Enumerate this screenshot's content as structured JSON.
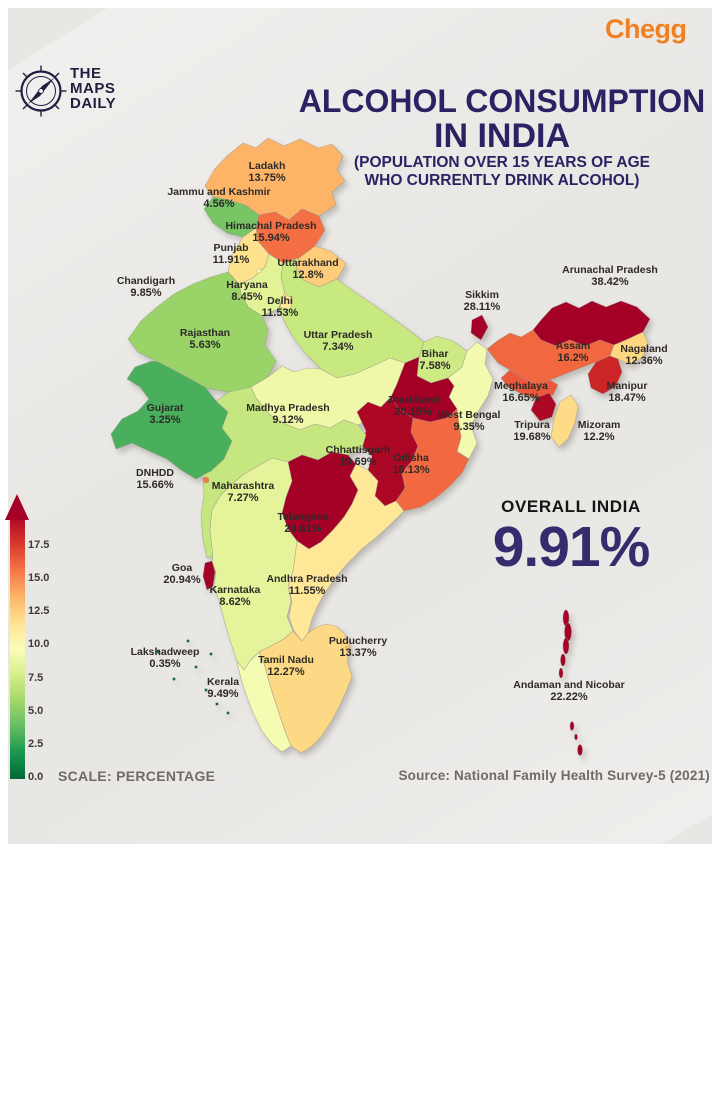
{
  "branding": {
    "chegg_logo": "Chegg",
    "chegg_color": "#f38020",
    "maps_daily_lines": [
      "THE",
      "MAPS",
      "DAILY"
    ],
    "logo_color": "#221e40"
  },
  "header": {
    "title_line1": "ALCOHOL CONSUMPTION",
    "title_line2": "IN INDIA",
    "subtitle_line1": "(POPULATION OVER 15 YEARS OF AGE",
    "subtitle_line2": "WHO CURRENTLY DRINK ALCOHOL)",
    "title_color": "#2a2263"
  },
  "overall": {
    "label": "OVERALL INDIA",
    "value": "9.91%",
    "value_color": "#372b6e"
  },
  "legend": {
    "scale_label": "SCALE: PERCENTAGE",
    "ticks": [
      "17.5",
      "15.0",
      "12.5",
      "10.0",
      "7.5",
      "5.0",
      "2.5",
      "0.0"
    ]
  },
  "footer": {
    "source": "Source: National Family Health Survey-5 (2021)"
  },
  "chart_data": {
    "type": "choropleth",
    "region": "India",
    "title": "ALCOHOL CONSUMPTION IN INDIA",
    "subtitle": "(POPULATION OVER 15 YEARS OF AGE WHO CURRENTLY DRINK ALCOHOL)",
    "metric": "percent of population over 15 years of age who currently drink alcohol",
    "unit": "%",
    "overall_india_percent": 9.91,
    "source": "National Family Health Survey-5 (2021)",
    "color_scale": {
      "type": "gradient",
      "orientation": "vertical",
      "ticks": [
        0.0,
        2.5,
        5.0,
        7.5,
        10.0,
        12.5,
        15.0,
        17.5
      ],
      "domain": [
        0,
        20
      ],
      "low_color": "#006837",
      "mid_color": "#ffffbf",
      "high_color": "#a50026"
    },
    "states": [
      {
        "name": "Ladakh",
        "value": 13.75
      },
      {
        "name": "Jammu and Kashmir",
        "value": 4.56
      },
      {
        "name": "Himachal Pradesh",
        "value": 15.94
      },
      {
        "name": "Punjab",
        "value": 11.91
      },
      {
        "name": "Uttarakhand",
        "value": 12.8
      },
      {
        "name": "Haryana",
        "value": 8.45
      },
      {
        "name": "Uttar Pradesh",
        "value": 7.34
      },
      {
        "name": "Delhi",
        "value": 11.53
      },
      {
        "name": "Chandigarh",
        "value": 9.85
      },
      {
        "name": "Rajasthan",
        "value": 5.63
      },
      {
        "name": "Gujarat",
        "value": 3.25
      },
      {
        "name": "Madhya Pradesh",
        "value": 9.12
      },
      {
        "name": "Bihar",
        "value": 7.58
      },
      {
        "name": "Sikkim",
        "value": 28.11
      },
      {
        "name": "West Bengal",
        "value": 9.35
      },
      {
        "name": "Jharkhand",
        "value": 20.15
      },
      {
        "name": "Arunachal Pradesh",
        "value": 38.42
      },
      {
        "name": "Assam",
        "value": 16.2
      },
      {
        "name": "Nagaland",
        "value": 12.36
      },
      {
        "name": "Manipur",
        "value": 18.47
      },
      {
        "name": "Meghalaya",
        "value": 16.65
      },
      {
        "name": "Mizoram",
        "value": 12.2
      },
      {
        "name": "Tripura",
        "value": 19.68
      },
      {
        "name": "Chhattisgarh",
        "value": 19.69
      },
      {
        "name": "Odisha",
        "value": 16.13
      },
      {
        "name": "Maharashtra",
        "value": 7.27
      },
      {
        "name": "DNHDD",
        "value": 15.66
      },
      {
        "name": "Telangana",
        "value": 24.61
      },
      {
        "name": "Andhra Pradesh",
        "value": 11.55
      },
      {
        "name": "Karnataka",
        "value": 8.62
      },
      {
        "name": "Goa",
        "value": 20.94
      },
      {
        "name": "Kerala",
        "value": 9.49
      },
      {
        "name": "Tamil Nadu",
        "value": 12.27
      },
      {
        "name": "Puducherry",
        "value": 13.37
      },
      {
        "name": "Lakshadweep",
        "value": 0.35
      },
      {
        "name": "Andaman and Nicobar",
        "value": 22.22
      }
    ]
  }
}
